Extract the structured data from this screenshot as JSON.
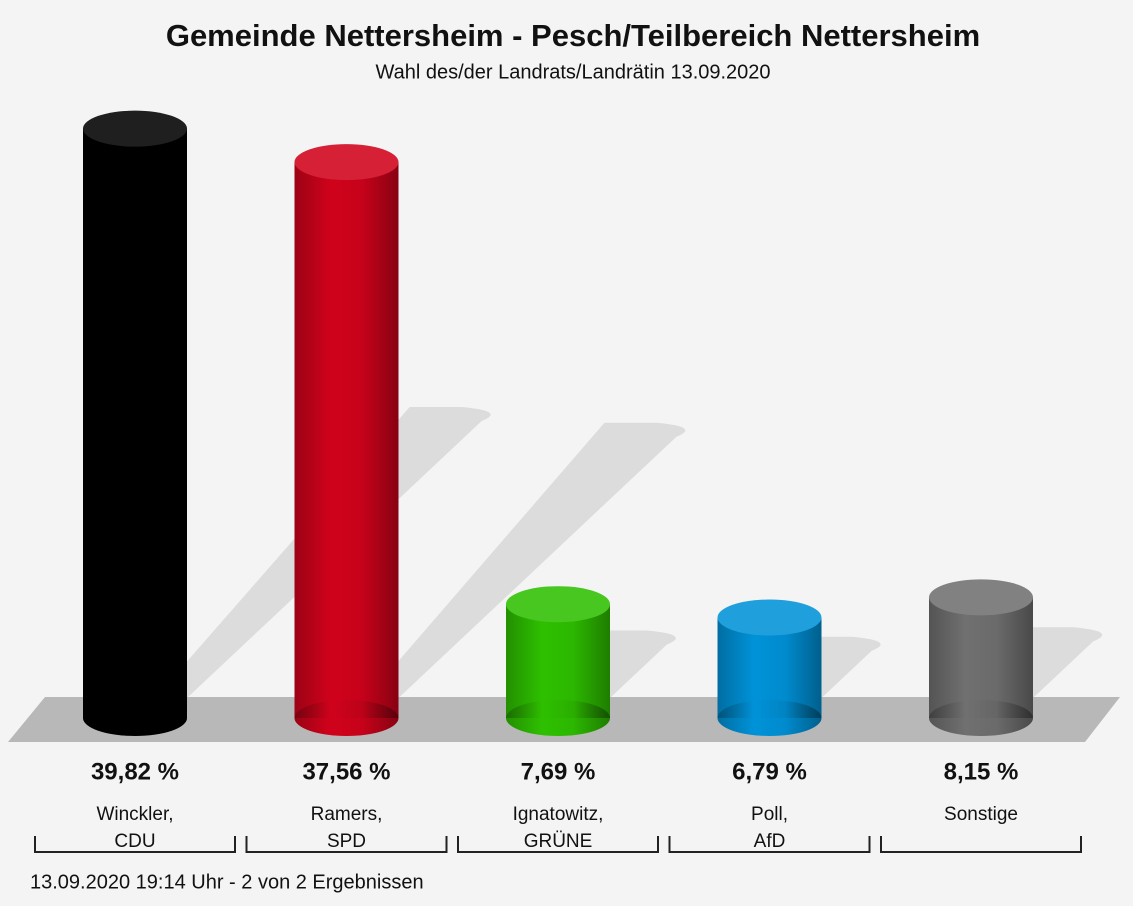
{
  "chart_data": {
    "type": "bar3d",
    "title": "Gemeinde Nettersheim - Pesch/Teilbereich Nettersheim",
    "subtitle": "Wahl des/der Landrats/Landrätin 13.09.2020",
    "categories": [
      [
        "Winckler,",
        "CDU"
      ],
      [
        "Ramers,",
        "SPD"
      ],
      [
        "Ignatowitz,",
        "GRÜNE"
      ],
      [
        "Poll,",
        "AfD"
      ],
      [
        "Sonstige"
      ]
    ],
    "values": [
      39.82,
      37.56,
      7.69,
      6.79,
      8.15
    ],
    "value_labels": [
      "39,82 %",
      "37,56 %",
      "7,69 %",
      "6,79 %",
      "8,15 %"
    ],
    "colors": [
      "#000000",
      "#d0021b",
      "#2ec000",
      "#0092d8",
      "#707070"
    ],
    "footer": "13.09.2020 19:14 Uhr - 2 von 2 Ergebnissen"
  }
}
